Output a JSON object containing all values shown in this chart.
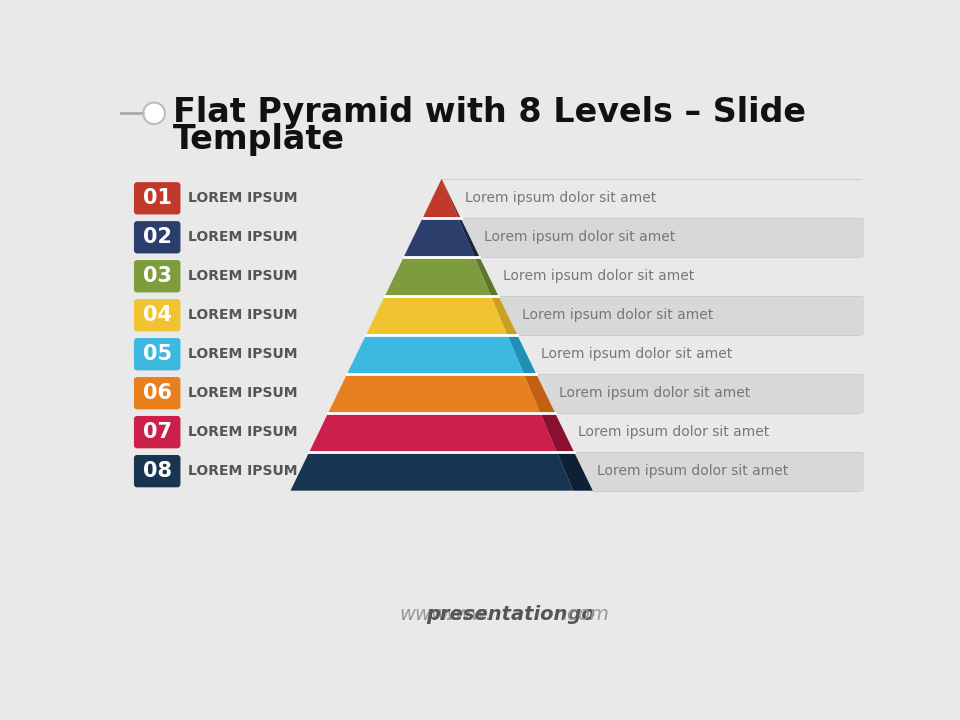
{
  "title_line1": "Flat Pyramid with 8 Levels – Slide",
  "title_line2": "Template",
  "background_color": "#e9e9e9",
  "levels": [
    {
      "num": "01",
      "label": "LOREM IPSUM",
      "desc": "Lorem ipsum dolor sit amet",
      "color": "#c0392b",
      "shadow_color": "#922b21"
    },
    {
      "num": "02",
      "label": "LOREM IPSUM",
      "desc": "Lorem ipsum dolor sit amet",
      "color": "#2c3e6b",
      "shadow_color": "#1a2540"
    },
    {
      "num": "03",
      "label": "LOREM IPSUM",
      "desc": "Lorem ipsum dolor sit amet",
      "color": "#7d9c3e",
      "shadow_color": "#5e7530"
    },
    {
      "num": "04",
      "label": "LOREM IPSUM",
      "desc": "Lorem ipsum dolor sit amet",
      "color": "#f0c430",
      "shadow_color": "#c9a020"
    },
    {
      "num": "05",
      "label": "LOREM IPSUM",
      "desc": "Lorem ipsum dolor sit amet",
      "color": "#3db8e0",
      "shadow_color": "#2090b8"
    },
    {
      "num": "06",
      "label": "LOREM IPSUM",
      "desc": "Lorem ipsum dolor sit amet",
      "color": "#e88020",
      "shadow_color": "#c06010"
    },
    {
      "num": "07",
      "label": "LOREM IPSUM",
      "desc": "Lorem ipsum dolor sit amet",
      "color": "#cc1f4a",
      "shadow_color": "#8b0f30"
    },
    {
      "num": "08",
      "label": "LOREM IPSUM",
      "desc": "Lorem ipsum dolor sit amet",
      "color": "#173550",
      "shadow_color": "#0d2035"
    }
  ],
  "footer_www": "www.",
  "footer_main": "presentationgo",
  "footer_com": ".com",
  "footer_color": "#999999",
  "footer_main_color": "#555555"
}
